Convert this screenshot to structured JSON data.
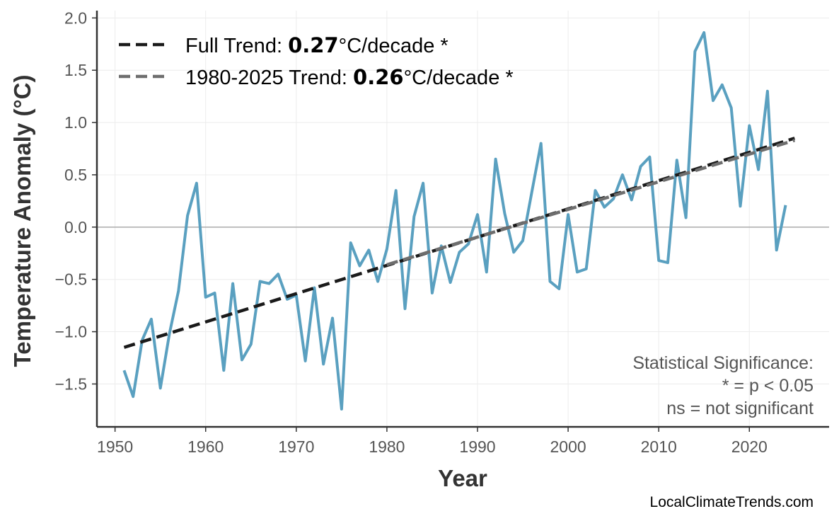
{
  "chart_data": {
    "type": "line",
    "xlabel": "Year",
    "ylabel": "Temperature Anomaly (°C)",
    "xlim": [
      1948,
      2028.8
    ],
    "ylim": [
      -1.91,
      2.07
    ],
    "grid": true,
    "legend_placement": "top-left",
    "x_ticks": [
      1950,
      1960,
      1970,
      1980,
      1990,
      2000,
      2010,
      2020
    ],
    "y_ticks": [
      -1.5,
      -1.0,
      -0.5,
      0.0,
      0.5,
      1.0,
      1.5,
      2.0
    ],
    "y_tick_labels": [
      "−1.5",
      "−1.0",
      "−0.5",
      "0.0",
      "0.5",
      "1.0",
      "1.5",
      "2.0"
    ],
    "zero_line": true,
    "series": [
      {
        "color": "#5aa0c0",
        "x": [
          1951,
          1952,
          1953,
          1954,
          1955,
          1956,
          1957,
          1958,
          1959,
          1960,
          1961,
          1962,
          1963,
          1964,
          1965,
          1966,
          1967,
          1968,
          1969,
          1970,
          1971,
          1972,
          1973,
          1974,
          1975,
          1976,
          1977,
          1978,
          1979,
          1980,
          1981,
          1982,
          1983,
          1984,
          1985,
          1986,
          1987,
          1988,
          1989,
          1990,
          1991,
          1992,
          1993,
          1994,
          1995,
          1996,
          1997,
          1998,
          1999,
          2000,
          2001,
          2002,
          2003,
          2004,
          2005,
          2006,
          2007,
          2008,
          2009,
          2010,
          2011,
          2012,
          2013,
          2014,
          2015,
          2016,
          2017,
          2018,
          2019,
          2020,
          2021,
          2022,
          2023,
          2024
        ],
        "y": [
          -1.37,
          -1.62,
          -1.08,
          -0.88,
          -1.54,
          -1.02,
          -0.61,
          0.11,
          0.42,
          -0.67,
          -0.63,
          -1.37,
          -0.54,
          -1.27,
          -1.12,
          -0.52,
          -0.54,
          -0.45,
          -0.69,
          -0.65,
          -1.28,
          -0.58,
          -1.31,
          -0.87,
          -1.74,
          -0.15,
          -0.37,
          -0.22,
          -0.52,
          -0.21,
          0.35,
          -0.78,
          0.1,
          0.42,
          -0.63,
          -0.18,
          -0.53,
          -0.24,
          -0.16,
          0.12,
          -0.43,
          0.65,
          0.13,
          -0.24,
          -0.13,
          0.34,
          0.8,
          -0.52,
          -0.59,
          0.12,
          -0.43,
          -0.4,
          0.35,
          0.19,
          0.27,
          0.5,
          0.26,
          0.58,
          0.67,
          -0.32,
          -0.34,
          0.64,
          0.09,
          1.68,
          1.86,
          1.21,
          1.36,
          1.14,
          0.2,
          0.97,
          0.55,
          1.3,
          -0.22,
          0.21
        ]
      }
    ],
    "trends": [
      {
        "name_prefix": "Full Trend: ",
        "value": "0.27",
        "suffix": "°C/decade *",
        "x": [
          1951,
          2025
        ],
        "y": [
          -1.15,
          0.85
        ],
        "color": "#1a1a1a"
      },
      {
        "name_prefix": "1980-2025 Trend: ",
        "value": "0.26",
        "suffix": "°C/decade *",
        "x": [
          1980,
          2025
        ],
        "y": [
          -0.36,
          0.83
        ],
        "color": "#6e6e6e"
      }
    ],
    "annotations": [
      "Statistical Significance:",
      "* = p < 0.05",
      "ns = not significant"
    ],
    "source": "LocalClimateTrends.com"
  }
}
